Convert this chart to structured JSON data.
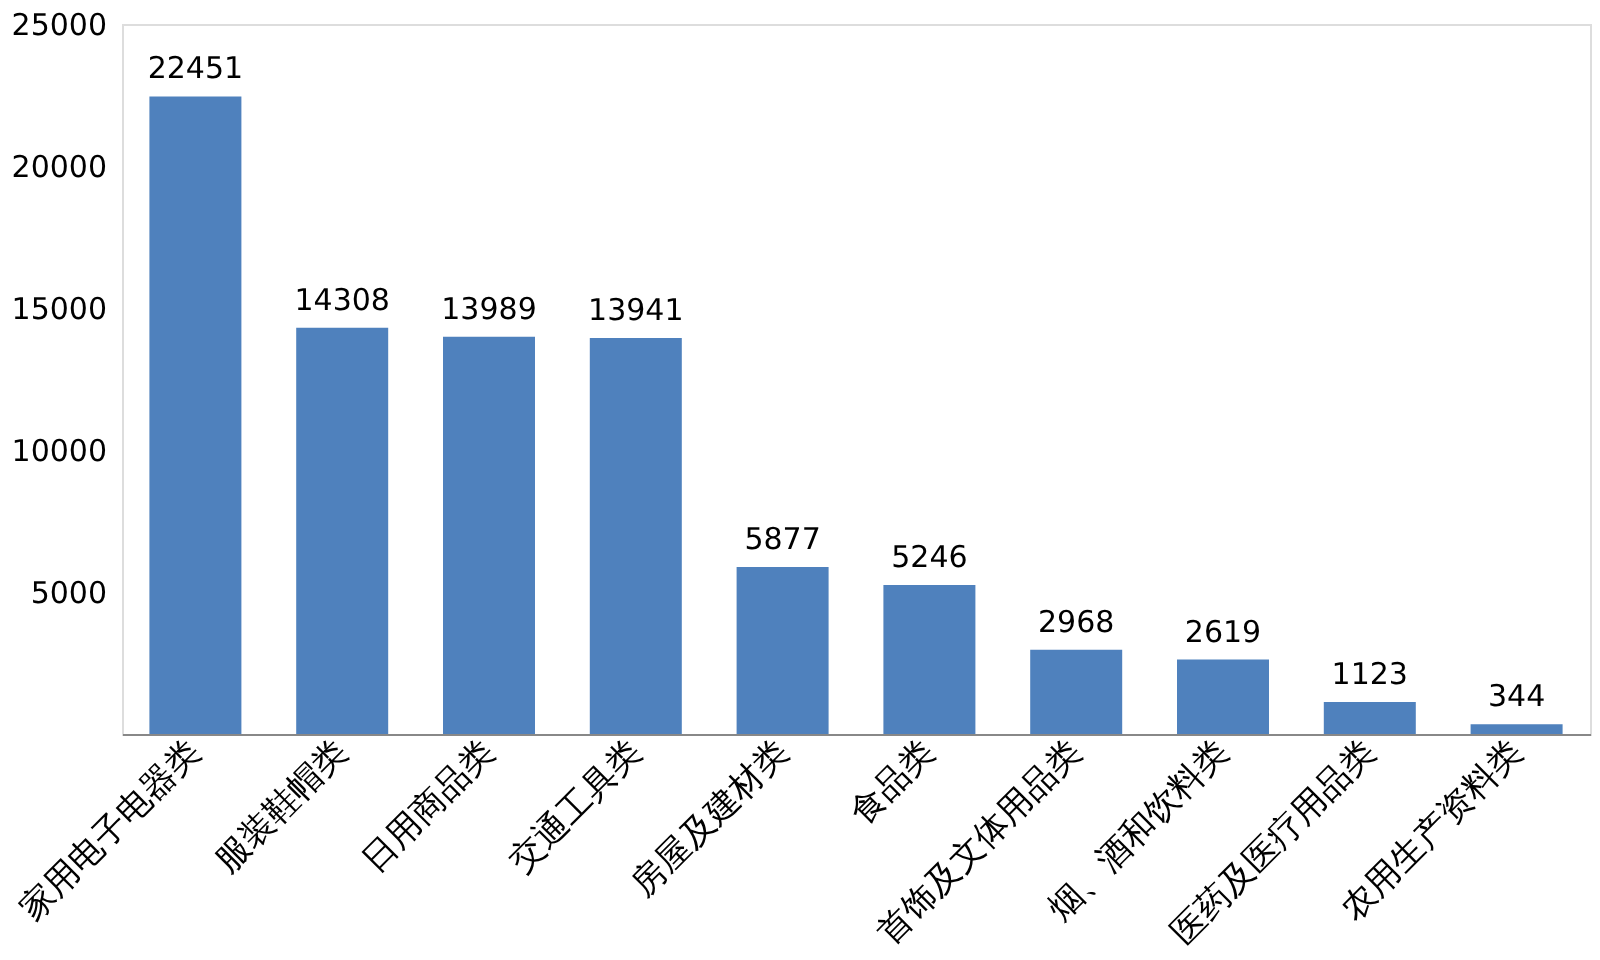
{
  "chart_data": {
    "type": "bar",
    "categories": [
      "家用电子电器类",
      "服装鞋帽类",
      "日用商品类",
      "交通工具类",
      "房屋及建材类",
      "食品类",
      "首饰及文体用品类",
      "烟、酒和饮料类",
      "医药及医疗用品类",
      "农用生产资料类"
    ],
    "values": [
      22451,
      14308,
      13989,
      13941,
      5877,
      5246,
      2968,
      2619,
      1123,
      344
    ],
    "color": "#4f81bd",
    "ylim": [
      0,
      25000
    ],
    "yticks": [
      5000,
      10000,
      15000,
      20000,
      25000
    ],
    "data_labels": true,
    "grid": false
  }
}
